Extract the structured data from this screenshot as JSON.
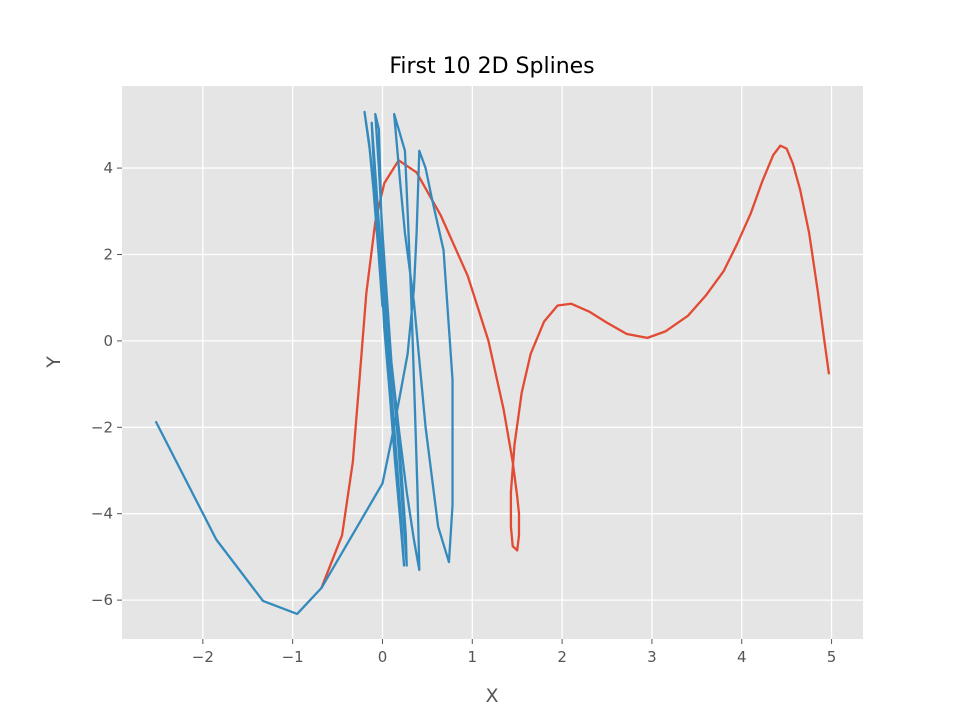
{
  "chart_data": {
    "type": "line",
    "title": "First 10 2D Splines",
    "xlabel": "X",
    "ylabel": "Y",
    "xlim": [
      -2.9,
      5.35
    ],
    "ylim": [
      -6.9,
      5.9
    ],
    "grid": true,
    "xticks": [
      -2,
      -1,
      0,
      1,
      2,
      3,
      4,
      5
    ],
    "yticks": [
      -6,
      -4,
      -2,
      0,
      2,
      4
    ],
    "series": [
      {
        "color": "#E24A33",
        "points": [
          [
            -0.68,
            -5.72
          ],
          [
            -0.45,
            -4.5
          ],
          [
            -0.33,
            -2.8
          ],
          [
            -0.26,
            -1.0
          ],
          [
            -0.18,
            1.1
          ],
          [
            -0.08,
            2.75
          ],
          [
            0.02,
            3.65
          ],
          [
            0.18,
            4.18
          ],
          [
            0.38,
            3.9
          ],
          [
            0.65,
            2.9
          ],
          [
            0.95,
            1.5
          ],
          [
            1.18,
            0.0
          ],
          [
            1.35,
            -1.6
          ],
          [
            1.45,
            -2.8
          ],
          [
            1.5,
            -3.6
          ],
          [
            1.52,
            -4.0
          ],
          [
            1.52,
            -4.5
          ],
          [
            1.5,
            -4.85
          ],
          [
            1.45,
            -4.75
          ],
          [
            1.43,
            -4.3
          ],
          [
            1.43,
            -3.5
          ],
          [
            1.47,
            -2.4
          ],
          [
            1.55,
            -1.2
          ],
          [
            1.65,
            -0.3
          ],
          [
            1.8,
            0.45
          ],
          [
            1.95,
            0.82
          ],
          [
            2.1,
            0.86
          ],
          [
            2.3,
            0.68
          ],
          [
            2.5,
            0.42
          ],
          [
            2.72,
            0.16
          ],
          [
            2.95,
            0.07
          ],
          [
            3.15,
            0.22
          ],
          [
            3.4,
            0.58
          ],
          [
            3.6,
            1.05
          ],
          [
            3.8,
            1.62
          ],
          [
            3.95,
            2.25
          ],
          [
            4.1,
            2.95
          ],
          [
            4.23,
            3.7
          ],
          [
            4.35,
            4.3
          ],
          [
            4.43,
            4.52
          ],
          [
            4.5,
            4.45
          ],
          [
            4.57,
            4.1
          ],
          [
            4.65,
            3.5
          ],
          [
            4.75,
            2.5
          ],
          [
            4.85,
            1.1
          ],
          [
            4.92,
            0.0
          ],
          [
            4.97,
            -0.75
          ]
        ]
      },
      {
        "color": "#348ABD",
        "points": [
          [
            -2.52,
            -1.88
          ],
          [
            -1.85,
            -4.6
          ],
          [
            -1.33,
            -6.02
          ],
          [
            -0.95,
            -6.32
          ],
          [
            -0.68,
            -5.72
          ],
          [
            0.0,
            -3.3
          ],
          [
            0.1,
            -2.3
          ],
          [
            0.2,
            -1.2
          ],
          [
            0.28,
            -0.3
          ],
          [
            0.35,
            1.2
          ],
          [
            0.38,
            2.5
          ],
          [
            0.41,
            4.4
          ],
          [
            0.48,
            4.0
          ],
          [
            0.55,
            3.3
          ],
          [
            0.68,
            2.1
          ],
          [
            0.78,
            -0.9
          ],
          [
            0.78,
            -3.8
          ],
          [
            0.74,
            -5.12
          ],
          [
            0.62,
            -4.3
          ],
          [
            0.48,
            -2.0
          ],
          [
            0.35,
            0.9
          ],
          [
            0.25,
            2.5
          ],
          [
            0.2,
            3.6
          ],
          [
            0.13,
            5.25
          ],
          [
            0.18,
            4.9
          ],
          [
            0.25,
            4.4
          ],
          [
            0.28,
            3.0
          ],
          [
            0.32,
            1.0
          ],
          [
            0.36,
            -1.5
          ],
          [
            0.39,
            -3.5
          ],
          [
            0.41,
            -5.3
          ],
          [
            0.35,
            -4.6
          ],
          [
            0.27,
            -3.5
          ],
          [
            0.18,
            -2.0
          ],
          [
            0.1,
            -0.5
          ],
          [
            0.05,
            1.0
          ],
          [
            0.0,
            2.5
          ],
          [
            -0.04,
            4.0
          ],
          [
            -0.08,
            5.25
          ],
          [
            -0.04,
            4.9
          ],
          [
            -0.02,
            3.5
          ],
          [
            0.0,
            2.0
          ],
          [
            0.05,
            0.5
          ],
          [
            0.12,
            -1.0
          ],
          [
            0.18,
            -2.5
          ],
          [
            0.23,
            -4.0
          ],
          [
            0.27,
            -5.2
          ],
          [
            0.26,
            -4.5
          ],
          [
            0.21,
            -3.0
          ],
          [
            0.14,
            -1.5
          ],
          [
            0.07,
            0.0
          ],
          [
            0.0,
            1.5
          ],
          [
            -0.05,
            3.0
          ],
          [
            -0.09,
            4.2
          ],
          [
            -0.12,
            5.05
          ],
          [
            -0.1,
            4.2
          ],
          [
            -0.06,
            3.0
          ],
          [
            -0.02,
            1.8
          ],
          [
            0.02,
            0.3
          ],
          [
            0.08,
            -1.2
          ],
          [
            0.14,
            -2.8
          ],
          [
            0.2,
            -4.2
          ],
          [
            0.24,
            -5.2
          ],
          [
            0.21,
            -4.2
          ],
          [
            0.16,
            -2.8
          ],
          [
            0.1,
            -1.2
          ],
          [
            0.04,
            0.3
          ],
          [
            -0.02,
            1.8
          ],
          [
            -0.08,
            3.2
          ],
          [
            -0.14,
            4.4
          ],
          [
            -0.2,
            5.3
          ],
          [
            -0.15,
            4.6
          ],
          [
            -0.1,
            3.5
          ],
          [
            -0.05,
            2.2
          ],
          [
            0.0,
            0.8
          ]
        ]
      }
    ]
  }
}
